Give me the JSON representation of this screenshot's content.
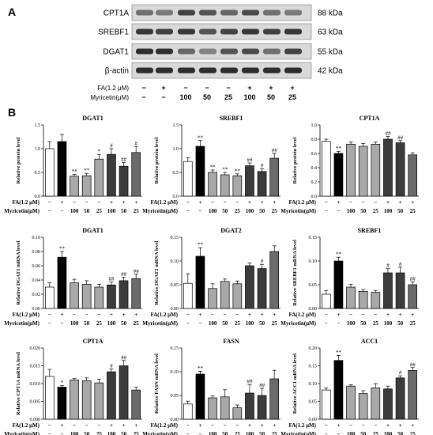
{
  "panels": {
    "a": "A",
    "b": "B"
  },
  "blot": {
    "rows": [
      {
        "name": "CPT1A",
        "kda": "88 kDa"
      },
      {
        "name": "SREBF1",
        "kda": "63 kDa"
      },
      {
        "name": "DGAT1",
        "kda": "55 kDa"
      },
      {
        "name": "β-actin",
        "kda": "42 kDa"
      }
    ],
    "treat_rows": [
      {
        "label": "FA(1.2 μM)",
        "values": [
          "−",
          "+",
          "−",
          "−",
          "−",
          "+",
          "+",
          "+"
        ]
      },
      {
        "label": "Myricetin(μM)",
        "values": [
          "−",
          "−",
          "100",
          "50",
          "25",
          "100",
          "50",
          "25"
        ]
      }
    ]
  },
  "treat_rows": [
    {
      "label": "FA(1.2 μM)",
      "values": [
        "−",
        "+",
        "−",
        "−",
        "−",
        "+",
        "+",
        "+"
      ]
    },
    {
      "label": "Myricetin(μM)",
      "values": [
        "−",
        "−",
        "100",
        "50",
        "25",
        "100",
        "50",
        "25"
      ]
    }
  ],
  "colors": {
    "control": "#ffffff",
    "fa": "#000000",
    "myr": "#a9a9a9",
    "combo": "#3c3c3c",
    "last": "#6b6b6b"
  },
  "chart_data": [
    {
      "type": "bar",
      "title": "DGAT1",
      "ylabel": "Relative protein level",
      "ylim": [
        0,
        1.5
      ],
      "yticks": [
        "0.0",
        "0.5",
        "1.0",
        "1.5"
      ],
      "values": [
        1.0,
        1.15,
        0.42,
        0.43,
        0.78,
        0.88,
        0.63,
        0.92
      ],
      "errors": [
        0.15,
        0.15,
        0.04,
        0.05,
        0.1,
        0.12,
        0.08,
        0.12
      ],
      "sig": [
        "",
        "",
        "**",
        "**",
        "*",
        "#",
        "##",
        "#"
      ]
    },
    {
      "type": "bar",
      "title": "SREBF1",
      "ylabel": "Relative protein level",
      "ylim": [
        0,
        1.5
      ],
      "yticks": [
        "0.0",
        "0.5",
        "1.0",
        "1.5"
      ],
      "values": [
        0.73,
        1.05,
        0.5,
        0.45,
        0.43,
        0.64,
        0.52,
        0.8
      ],
      "errors": [
        0.08,
        0.12,
        0.05,
        0.05,
        0.04,
        0.06,
        0.06,
        0.1
      ],
      "sig": [
        "",
        "**",
        "**",
        "**",
        "**",
        "##",
        "#",
        "##"
      ]
    },
    {
      "type": "bar",
      "title": "CPT1A",
      "ylabel": "Relative protein level",
      "ylim": [
        0,
        1.0
      ],
      "yticks": [
        "0.0",
        "0.2",
        "0.4",
        "0.6",
        "0.8",
        "1.0"
      ],
      "values": [
        0.77,
        0.6,
        0.73,
        0.7,
        0.73,
        0.8,
        0.75,
        0.58
      ],
      "errors": [
        0.03,
        0.03,
        0.03,
        0.04,
        0.03,
        0.04,
        0.03,
        0.03
      ],
      "sig": [
        "",
        "**",
        "",
        "",
        "",
        "##",
        "##",
        ""
      ]
    },
    {
      "type": "bar",
      "title": "DGAT1",
      "ylabel": "Relative DGAT1 mRNA level",
      "ylim": [
        0,
        0.1
      ],
      "yticks": [
        "0.00",
        "0.02",
        "0.04",
        "0.06",
        "0.08",
        "0.10"
      ],
      "values": [
        0.03,
        0.072,
        0.036,
        0.034,
        0.03,
        0.033,
        0.039,
        0.042
      ],
      "errors": [
        0.006,
        0.008,
        0.005,
        0.005,
        0.004,
        0.004,
        0.005,
        0.006
      ],
      "sig": [
        "",
        "**",
        "",
        "",
        "",
        "##",
        "##",
        "##"
      ]
    },
    {
      "type": "bar",
      "title": "DGAT2",
      "ylabel": "Relative DGAT2 mRNA level",
      "ylim": [
        0,
        0.15
      ],
      "yticks": [
        "0.00",
        "0.05",
        "0.10",
        "0.15"
      ],
      "values": [
        0.053,
        0.11,
        0.042,
        0.057,
        0.052,
        0.09,
        0.084,
        0.12
      ],
      "errors": [
        0.02,
        0.018,
        0.01,
        0.005,
        0.006,
        0.006,
        0.009,
        0.012
      ],
      "sig": [
        "",
        "**",
        "",
        "",
        "",
        "",
        "#",
        ""
      ]
    },
    {
      "type": "bar",
      "title": "SREBF1",
      "ylabel": "Relative SREBF1 mRNA level",
      "ylim": [
        0,
        0.15
      ],
      "yticks": [
        "0.00",
        "0.05",
        "0.10",
        "0.15"
      ],
      "values": [
        0.03,
        0.1,
        0.045,
        0.036,
        0.034,
        0.075,
        0.075,
        0.05
      ],
      "errors": [
        0.008,
        0.008,
        0.006,
        0.004,
        0.004,
        0.009,
        0.012,
        0.006
      ],
      "sig": [
        "",
        "**",
        "",
        "",
        "",
        "#",
        "#",
        "##"
      ]
    },
    {
      "type": "bar",
      "title": "CPT1A",
      "ylabel": "Relative CPT1A mRNA level",
      "ylim": [
        0,
        0.02
      ],
      "yticks": [
        "0.000",
        "0.005",
        "0.010",
        "0.015",
        "0.020"
      ],
      "values": [
        0.012,
        0.009,
        0.011,
        0.0108,
        0.0102,
        0.0133,
        0.015,
        0.0082
      ],
      "errors": [
        0.002,
        0.0004,
        0.0004,
        0.0008,
        0.001,
        0.0008,
        0.0015,
        0.0008
      ],
      "sig": [
        "",
        "*",
        "",
        "",
        "",
        "#",
        "##",
        ""
      ]
    },
    {
      "type": "bar",
      "title": "FASN",
      "ylabel": "Relative FASN mRNA level",
      "ylim": [
        0,
        0.15
      ],
      "yticks": [
        "0.00",
        "0.05",
        "0.10",
        "0.15"
      ],
      "values": [
        0.032,
        0.095,
        0.045,
        0.047,
        0.024,
        0.055,
        0.05,
        0.085
      ],
      "errors": [
        0.006,
        0.006,
        0.004,
        0.015,
        0.006,
        0.018,
        0.015,
        0.018
      ],
      "sig": [
        "",
        "**",
        "",
        "",
        "",
        "##",
        "##",
        ""
      ]
    },
    {
      "type": "bar",
      "title": "ACC1",
      "ylabel": "Relative ACC1 mRNA level",
      "ylim": [
        0,
        0.2
      ],
      "yticks": [
        "0.00",
        "0.05",
        "0.10",
        "0.15",
        "0.20"
      ],
      "values": [
        0.082,
        0.165,
        0.093,
        0.072,
        0.088,
        0.085,
        0.116,
        0.137
      ],
      "errors": [
        0.006,
        0.014,
        0.004,
        0.008,
        0.012,
        0.008,
        0.006,
        0.008
      ],
      "sig": [
        "",
        "**",
        "",
        "",
        "",
        "",
        "#",
        "##"
      ]
    }
  ]
}
